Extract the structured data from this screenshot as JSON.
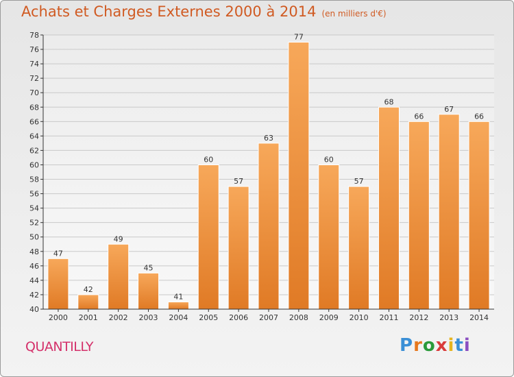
{
  "header": {
    "title": "Achats et Charges Externes 2000 à 2014",
    "unit": "(en milliers d'€)"
  },
  "footer": {
    "town": "QUANTILLY",
    "brand": "Proxiti",
    "brand_colors": [
      "#3a8fd6",
      "#e6781e",
      "#2a9a3a",
      "#d93b3b",
      "#e6b41e",
      "#3a8fd6",
      "#8a4fc1"
    ]
  },
  "colors": {
    "bar_light": "#f7a85a",
    "bar_dark": "#e07a25",
    "grid": "#c9c9c9",
    "axis": "#333333"
  },
  "chart_data": {
    "type": "bar",
    "title": "Achats et Charges Externes 2000 à 2014",
    "xlabel": "",
    "ylabel": "",
    "categories": [
      "2000",
      "2001",
      "2002",
      "2003",
      "2004",
      "2005",
      "2006",
      "2007",
      "2008",
      "2009",
      "2010",
      "2011",
      "2012",
      "2013",
      "2014"
    ],
    "values": [
      47,
      42,
      49,
      45,
      41,
      60,
      57,
      63,
      77,
      60,
      57,
      68,
      66,
      67,
      66
    ],
    "ylim": [
      40,
      78
    ],
    "yticks": [
      40,
      42,
      44,
      46,
      48,
      50,
      52,
      54,
      56,
      58,
      60,
      62,
      64,
      66,
      68,
      70,
      72,
      74,
      76,
      78
    ],
    "grid": true
  }
}
